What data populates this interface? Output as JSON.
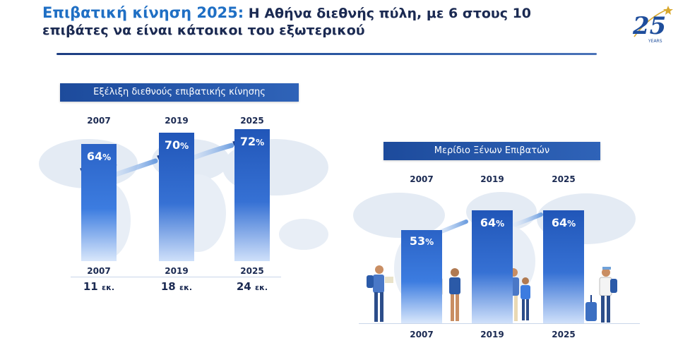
{
  "header": {
    "title_accent": "Επιβατική κίνηση 2025:",
    "title_rest": " Η Αθήνα διεθνής πύλη, με 6 στους 10",
    "title_line2": "επιβάτες να είναι κάτοικοι του εξωτερικού"
  },
  "logo": {
    "number": "25",
    "word": "YEARS",
    "icon": "anniversary-25-years-logo"
  },
  "colors": {
    "navy": "#1b2a52",
    "accent": "#1f6fc4",
    "bar_top": "#2b63c6",
    "bar_bottom": "#d9e7fb"
  },
  "chart_data": [
    {
      "type": "bar",
      "title": "Εξέλιξη διεθνούς επιβατικής κίνησης",
      "categories": [
        "2007",
        "2019",
        "2025"
      ],
      "series": [
        {
          "values": [
            64,
            70,
            72
          ]
        }
      ],
      "value_labels": [
        "64",
        "70",
        "72"
      ],
      "value_suffix": "%",
      "bottom_years": [
        "2007",
        "2019",
        "2025"
      ],
      "passengers": [
        "11",
        "18",
        "24"
      ],
      "passengers_suffix": "εκ.",
      "ylim": [
        0,
        100
      ]
    },
    {
      "type": "bar",
      "title": "Μερίδιο Ξένων Επιβατών",
      "categories": [
        "2007",
        "2019",
        "2025"
      ],
      "series": [
        {
          "values": [
            53,
            64,
            64
          ]
        }
      ],
      "value_labels": [
        "53",
        "64",
        "64"
      ],
      "value_suffix": "%",
      "bottom_years": [
        "2007",
        "2019",
        "2025"
      ],
      "ylim": [
        0,
        100
      ]
    }
  ]
}
